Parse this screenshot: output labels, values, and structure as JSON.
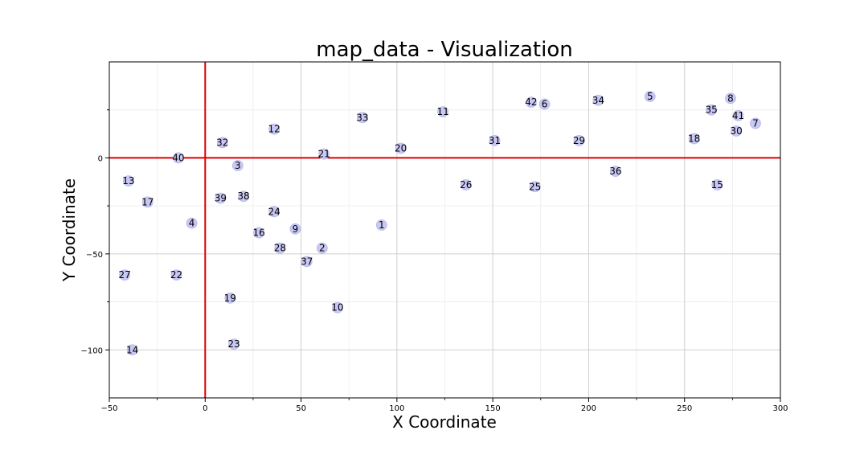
{
  "chart_data": {
    "type": "scatter",
    "title": "map_data - Visualization",
    "xlabel": "X Coordinate",
    "ylabel": "Y Coordinate",
    "xlim": [
      -50,
      300
    ],
    "ylim": [
      -125,
      50
    ],
    "xticks": [
      -50,
      0,
      50,
      100,
      150,
      200,
      250,
      300
    ],
    "yticks": [
      -100,
      -50,
      0
    ],
    "grid": true,
    "reference_lines": {
      "x": 0,
      "y": 0,
      "color": "#dd0000"
    },
    "point_color": "#c8c8f4",
    "points": [
      {
        "label": "1",
        "x": 92,
        "y": -35
      },
      {
        "label": "2",
        "x": 61,
        "y": -47
      },
      {
        "label": "3",
        "x": 17,
        "y": -4
      },
      {
        "label": "4",
        "x": -7,
        "y": -34
      },
      {
        "label": "5",
        "x": 232,
        "y": 32
      },
      {
        "label": "6",
        "x": 177,
        "y": 28
      },
      {
        "label": "7",
        "x": 287,
        "y": 18
      },
      {
        "label": "8",
        "x": 274,
        "y": 31
      },
      {
        "label": "9",
        "x": 47,
        "y": -37
      },
      {
        "label": "10",
        "x": 69,
        "y": -78
      },
      {
        "label": "11",
        "x": 124,
        "y": 24
      },
      {
        "label": "12",
        "x": 36,
        "y": 15
      },
      {
        "label": "13",
        "x": -40,
        "y": -12
      },
      {
        "label": "14",
        "x": -38,
        "y": -100
      },
      {
        "label": "15",
        "x": 267,
        "y": -14
      },
      {
        "label": "16",
        "x": 28,
        "y": -39
      },
      {
        "label": "17",
        "x": -30,
        "y": -23
      },
      {
        "label": "18",
        "x": 255,
        "y": 10
      },
      {
        "label": "19",
        "x": 13,
        "y": -73
      },
      {
        "label": "20",
        "x": 102,
        "y": 5
      },
      {
        "label": "21",
        "x": 62,
        "y": 2
      },
      {
        "label": "22",
        "x": -15,
        "y": -61
      },
      {
        "label": "23",
        "x": 15,
        "y": -97
      },
      {
        "label": "24",
        "x": 36,
        "y": -28
      },
      {
        "label": "25",
        "x": 172,
        "y": -15
      },
      {
        "label": "26",
        "x": 136,
        "y": -14
      },
      {
        "label": "27",
        "x": -42,
        "y": -61
      },
      {
        "label": "28",
        "x": 39,
        "y": -47
      },
      {
        "label": "29",
        "x": 195,
        "y": 9
      },
      {
        "label": "30",
        "x": 277,
        "y": 14
      },
      {
        "label": "31",
        "x": 151,
        "y": 9
      },
      {
        "label": "32",
        "x": 9,
        "y": 8
      },
      {
        "label": "33",
        "x": 82,
        "y": 21
      },
      {
        "label": "34",
        "x": 205,
        "y": 30
      },
      {
        "label": "35",
        "x": 264,
        "y": 25
      },
      {
        "label": "36",
        "x": 214,
        "y": -7
      },
      {
        "label": "37",
        "x": 53,
        "y": -54
      },
      {
        "label": "38",
        "x": 20,
        "y": -20
      },
      {
        "label": "39",
        "x": 8,
        "y": -21
      },
      {
        "label": "40",
        "x": -14,
        "y": 0
      },
      {
        "label": "41",
        "x": 278,
        "y": 22
      },
      {
        "label": "42",
        "x": 170,
        "y": 29
      }
    ]
  }
}
